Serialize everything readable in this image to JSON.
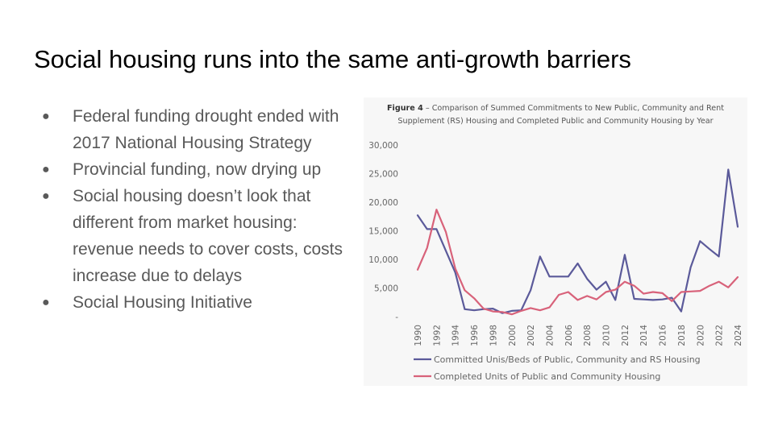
{
  "slide": {
    "title": "Social housing runs into the same anti-growth barriers",
    "bullets": [
      "Federal funding drought ended with 2017 National Housing Strategy",
      "Provincial funding, now drying up",
      "Social housing doesn’t look that different from market housing: revenue needs to cover costs, costs increase due to delays",
      "Social Housing Initiative"
    ],
    "bullet_symbol": "●"
  },
  "figure": {
    "label": "Figure 4",
    "separator": " – ",
    "caption_line1": "Comparison of Summed Commitments to New Public, Community and Rent",
    "caption_line2": "Supplement (RS) Housing and Completed Public and Community Housing by Year"
  },
  "chart_data": {
    "type": "line",
    "x": [
      1990,
      1991,
      1992,
      1993,
      1994,
      1995,
      1996,
      1997,
      1998,
      1999,
      2000,
      2001,
      2002,
      2003,
      2004,
      2005,
      2006,
      2007,
      2008,
      2009,
      2010,
      2011,
      2012,
      2013,
      2014,
      2015,
      2016,
      2017,
      2018,
      2019,
      2020,
      2021,
      2022,
      2023,
      2024
    ],
    "x_tick_labels": [
      "1990",
      "1992",
      "1994",
      "1996",
      "1998",
      "2000",
      "2002",
      "2004",
      "2006",
      "2008",
      "2010",
      "2012",
      "2014",
      "2016",
      "2018",
      "2020",
      "2022",
      "2024"
    ],
    "y_tick_labels": [
      "-",
      "5,000",
      "10,000",
      "15,000",
      "20,000",
      "25,000",
      "30,000"
    ],
    "ylim": [
      0,
      30000
    ],
    "series": [
      {
        "name": "Committed Unis/Beds of Public, Community and RS Housing",
        "color": "#5b5a9a",
        "values": [
          17700,
          15300,
          15300,
          11500,
          7700,
          1300,
          1100,
          1300,
          1400,
          600,
          1000,
          1100,
          4600,
          10500,
          7000,
          7000,
          7000,
          9300,
          6600,
          4700,
          6100,
          2900,
          10800,
          3100,
          3000,
          2900,
          3000,
          3300,
          900,
          8600,
          13200,
          11800,
          10500,
          25700,
          15700
        ]
      },
      {
        "name": "Completed Units of Public and Community Housing",
        "color": "#d8627a",
        "values": [
          8200,
          12000,
          18700,
          14800,
          8400,
          4600,
          3200,
          1400,
          900,
          800,
          400,
          1000,
          1500,
          1100,
          1600,
          3800,
          4300,
          2900,
          3600,
          3000,
          4300,
          4700,
          6100,
          5400,
          4000,
          4300,
          4100,
          2700,
          4300,
          4400,
          4500,
          5400,
          6100,
          5100,
          6900
        ]
      }
    ],
    "xlabel": "",
    "ylabel": "",
    "legend_position": "bottom"
  }
}
